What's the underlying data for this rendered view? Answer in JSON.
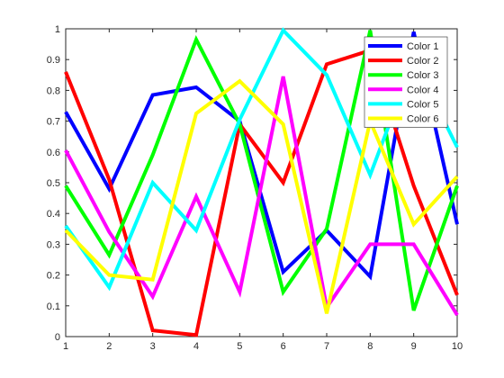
{
  "chart_data": {
    "type": "line",
    "title": "",
    "xlabel": "",
    "ylabel": "",
    "x": [
      1,
      2,
      3,
      4,
      5,
      6,
      7,
      8,
      9,
      10
    ],
    "xlim": [
      1,
      10
    ],
    "ylim": [
      0,
      1
    ],
    "xticks": [
      1,
      2,
      3,
      4,
      5,
      6,
      7,
      8,
      9,
      10
    ],
    "yticks": [
      0,
      0.1,
      0.2,
      0.3,
      0.4,
      0.5,
      0.6,
      0.7,
      0.8,
      0.9,
      1
    ],
    "grid": false,
    "legend_position": "top-right",
    "series": [
      {
        "name": "Color 1",
        "color": "#0000ff",
        "values": [
          0.73,
          0.48,
          0.785,
          0.81,
          0.7,
          0.21,
          0.345,
          0.195,
          0.99,
          0.365
        ]
      },
      {
        "name": "Color 2",
        "color": "#ff0000",
        "values": [
          0.86,
          0.51,
          0.02,
          0.005,
          0.69,
          0.5,
          0.885,
          0.93,
          0.49,
          0.135
        ]
      },
      {
        "name": "Color 3",
        "color": "#00ff00",
        "values": [
          0.49,
          0.265,
          0.59,
          0.965,
          0.69,
          0.145,
          0.35,
          0.995,
          0.085,
          0.49
        ]
      },
      {
        "name": "Color 4",
        "color": "#ff00ff",
        "values": [
          0.605,
          0.34,
          0.13,
          0.455,
          0.145,
          0.845,
          0.095,
          0.3,
          0.3,
          0.07
        ]
      },
      {
        "name": "Color 5",
        "color": "#00ffff",
        "values": [
          0.36,
          0.16,
          0.5,
          0.345,
          0.705,
          0.995,
          0.85,
          0.525,
          0.9,
          0.615
        ]
      },
      {
        "name": "Color 6",
        "color": "#ffff00",
        "values": [
          0.345,
          0.2,
          0.185,
          0.725,
          0.83,
          0.69,
          0.075,
          0.7,
          0.365,
          0.52
        ]
      }
    ]
  }
}
